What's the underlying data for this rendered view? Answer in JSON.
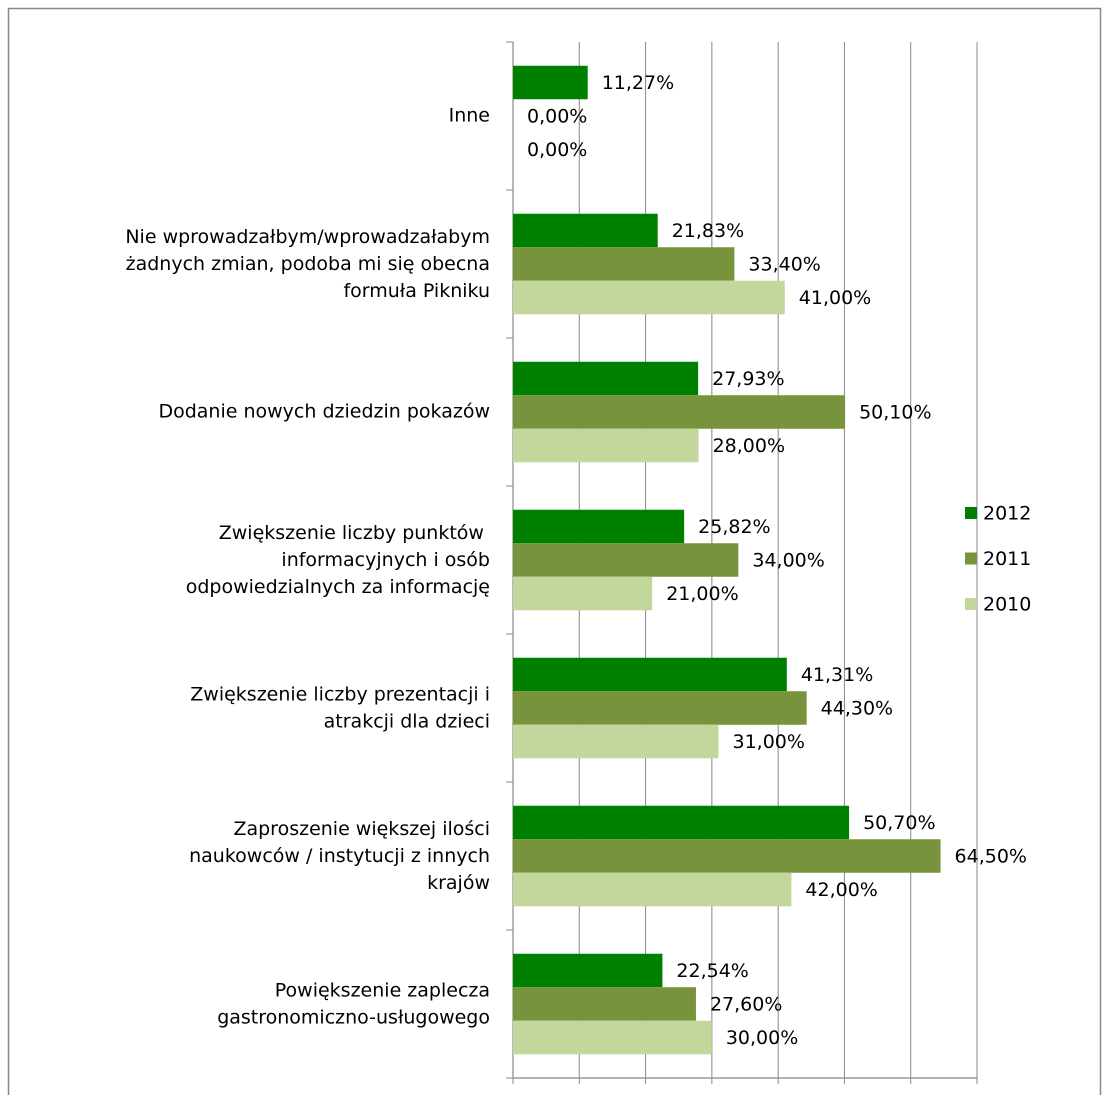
{
  "chart_data": {
    "type": "hbar",
    "categories": [
      "Inne",
      "Nie wprowadzałbym/wprowadzałabym\nżadnych zmian, podoba mi się obecna\nformuła Pikniku",
      "Dodanie nowych dziedzin pokazów",
      "Zwiększenie liczby punktów \ninformacyjnych i osób\nodpowiedzialnych za informację ",
      "Zwiększenie liczby prezentacji i\natrakcji dla dzieci",
      "Zaproszenie większej ilości\nnaukowców / instytucji z innych\nkrajów",
      "Powiększenie zaplecza\ngastronomiczno-usługowego"
    ],
    "series": [
      {
        "name": "2012",
        "color": "#008000",
        "values": [
          11.27,
          21.83,
          27.93,
          25.82,
          41.31,
          50.7,
          22.54
        ],
        "value_labels": [
          "11,27%",
          "21,83%",
          "27,93%",
          "25,82%",
          "41,31%",
          "50,70%",
          "22,54%"
        ]
      },
      {
        "name": "2011",
        "color": "#77933c",
        "values": [
          0,
          33.4,
          50.1,
          34,
          44.3,
          64.5,
          27.6
        ],
        "value_labels": [
          "0,00%",
          "33,40%",
          "50,10%",
          "34,00%",
          "44,30%",
          "64,50%",
          "27,60%"
        ]
      },
      {
        "name": "2010",
        "color": "#c3d69b",
        "values": [
          0,
          41,
          28,
          21,
          31,
          42,
          30
        ],
        "value_labels": [
          "0,00%",
          "41,00%",
          "28,00%",
          "21,00%",
          "31,00%",
          "42,00%",
          "30,00%"
        ]
      }
    ],
    "xlim": [
      0,
      70
    ],
    "xticks": [
      0,
      10,
      20,
      30,
      40,
      50,
      60,
      70
    ],
    "grid": true,
    "legend": "right"
  }
}
